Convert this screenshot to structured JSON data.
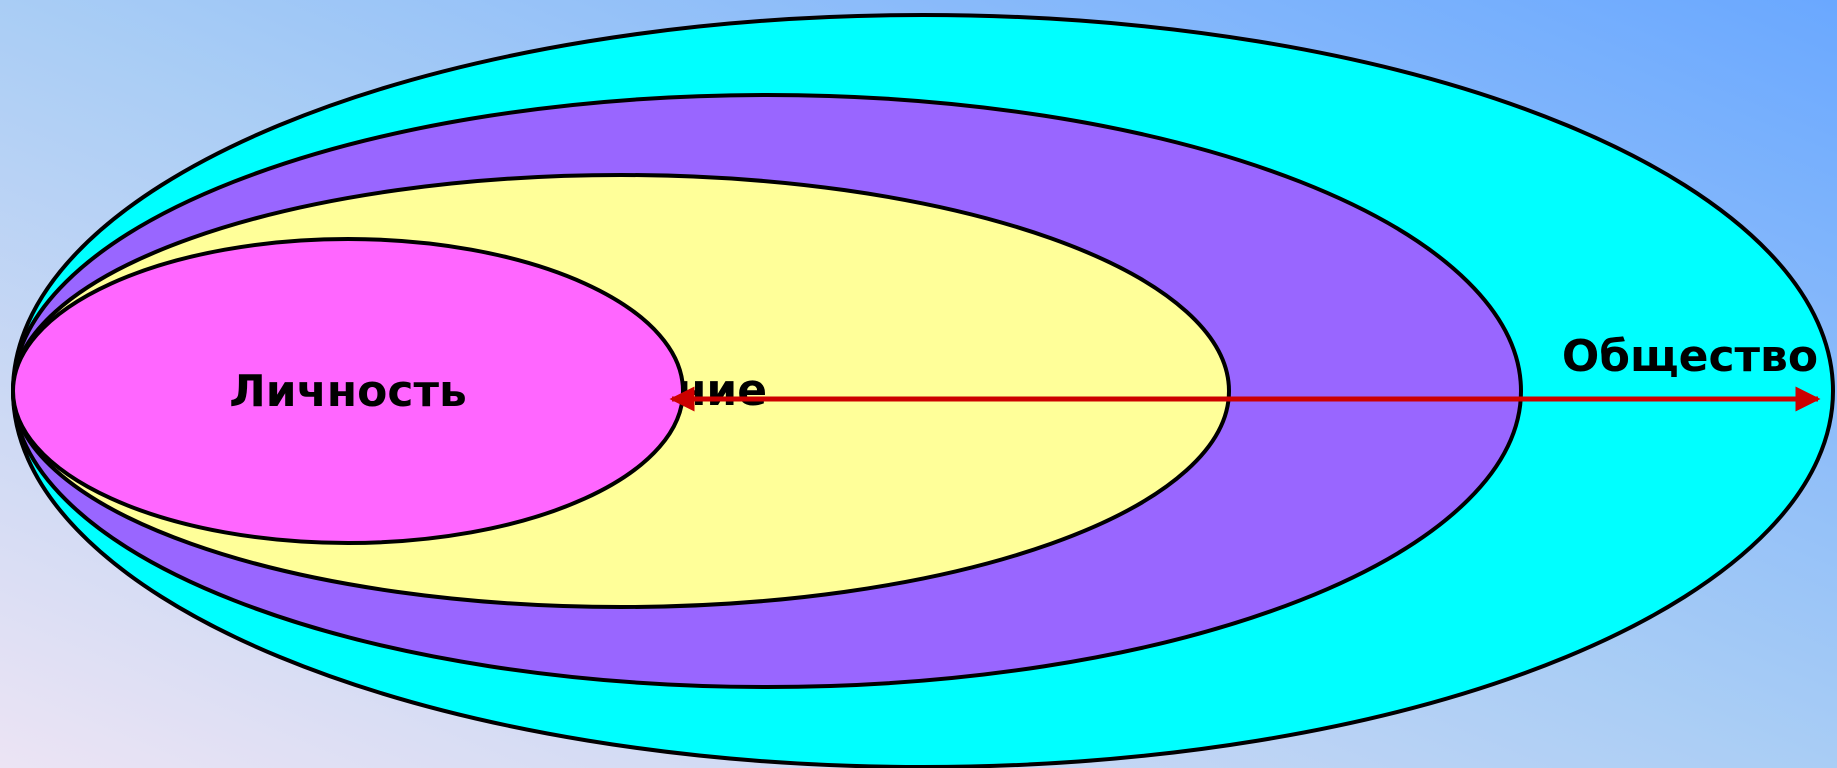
{
  "diagram": {
    "rings": [
      {
        "id": "society",
        "label": "Общество",
        "color": "#00ffff"
      },
      {
        "id": "ring-2",
        "label": "",
        "color": "#9966ff"
      },
      {
        "id": "environment",
        "label": "Окружение",
        "color": "#ffff99"
      },
      {
        "id": "personality",
        "label": "Личность",
        "color": "#ff66ff"
      }
    ],
    "arrow": {
      "color": "#cc0000",
      "direction": "both"
    },
    "outline_color": "#000000",
    "background": {
      "from": "#ece4f4",
      "to": "#6aa8ff"
    }
  }
}
